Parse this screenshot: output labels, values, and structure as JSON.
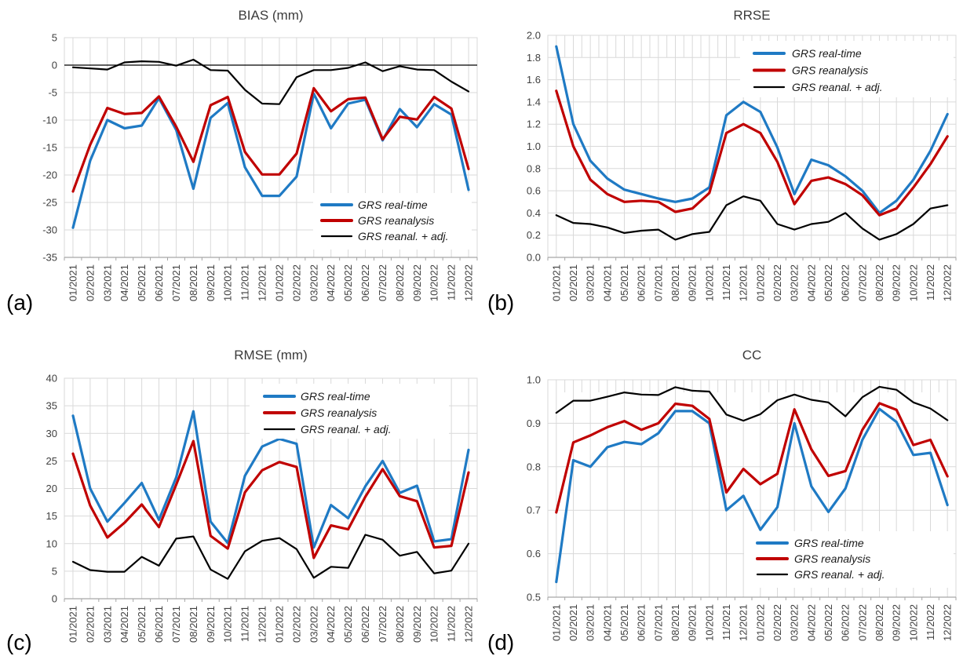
{
  "figure": {
    "background": "#FFFFFF",
    "accent_colors": {
      "real_time_blue": "#1F7AC4",
      "reanalysis_red": "#C00000",
      "adjusted_black": "#000000"
    },
    "legend_labels": [
      "GRS real-time",
      "GRS reanalysis",
      "GRS reanal. + adj."
    ]
  },
  "chart_data": [
    {
      "id": "bias",
      "letter": "(a)",
      "type": "line",
      "title": "BIAS (mm)",
      "xlabel": "",
      "ylabel": "",
      "ylim": [
        -35,
        5
      ],
      "ytick_step": 5,
      "ytick_decimals": 0,
      "grid": "on",
      "legend_position": "bottom-right",
      "categories": [
        "01/2021",
        "02/2021",
        "03/2021",
        "04/2021",
        "05/2021",
        "06/2021",
        "07/2021",
        "08/2021",
        "09/2021",
        "10/2021",
        "11/2021",
        "12/2021",
        "01/2022",
        "02/2022",
        "03/2022",
        "04/2022",
        "05/2022",
        "06/2022",
        "07/2022",
        "08/2022",
        "09/2022",
        "10/2022",
        "11/2022",
        "12/2022"
      ],
      "series": [
        {
          "name": "GRS real-time",
          "color": "#1F7AC4",
          "values": [
            -29.6,
            -17.4,
            -10.0,
            -11.5,
            -11.0,
            -6.0,
            -11.8,
            -22.5,
            -9.6,
            -6.9,
            -18.6,
            -23.8,
            -23.8,
            -20.3,
            -5.2,
            -11.5,
            -7.0,
            -6.3,
            -13.7,
            -8.0,
            -11.3,
            -7.1,
            -9.0,
            -22.7
          ]
        },
        {
          "name": "GRS reanalysis",
          "color": "#C00000",
          "values": [
            -23.0,
            -14.5,
            -7.8,
            -8.9,
            -8.7,
            -5.7,
            -11.2,
            -17.6,
            -7.3,
            -5.8,
            -15.8,
            -19.9,
            -19.9,
            -16.1,
            -4.2,
            -8.4,
            -6.2,
            -5.9,
            -13.5,
            -9.4,
            -9.9,
            -5.8,
            -7.9,
            -18.9
          ]
        },
        {
          "name": "GRS reanal. + adj.",
          "color": "#000000",
          "values": [
            -0.4,
            -0.6,
            -0.8,
            0.5,
            0.7,
            0.6,
            -0.1,
            1.0,
            -0.9,
            -1.0,
            -4.5,
            -7.0,
            -7.1,
            -2.2,
            -0.9,
            -0.9,
            -0.5,
            0.5,
            -1.1,
            -0.2,
            -0.8,
            -0.9,
            -3.0,
            -4.8
          ]
        }
      ]
    },
    {
      "id": "rrse",
      "letter": "(b)",
      "type": "line",
      "title": "RRSE",
      "xlabel": "",
      "ylabel": "",
      "ylim": [
        0.0,
        2.0
      ],
      "ytick_step": 0.2,
      "ytick_decimals": 1,
      "grid": "on",
      "legend_position": "top-right",
      "categories": [
        "01/2021",
        "02/2021",
        "03/2021",
        "04/2021",
        "05/2021",
        "06/2021",
        "07/2021",
        "08/2021",
        "09/2021",
        "10/2021",
        "11/2021",
        "12/2021",
        "01/2022",
        "02/2022",
        "03/2022",
        "04/2022",
        "05/2022",
        "06/2022",
        "07/2022",
        "08/2022",
        "09/2022",
        "10/2022",
        "11/2022",
        "12/2022"
      ],
      "series": [
        {
          "name": "GRS real-time",
          "color": "#1F7AC4",
          "values": [
            1.9,
            1.2,
            0.87,
            0.71,
            0.61,
            0.57,
            0.53,
            0.5,
            0.53,
            0.63,
            1.28,
            1.4,
            1.31,
            0.99,
            0.57,
            0.88,
            0.83,
            0.73,
            0.6,
            0.4,
            0.51,
            0.7,
            0.96,
            1.29
          ]
        },
        {
          "name": "GRS reanalysis",
          "color": "#C00000",
          "values": [
            1.5,
            1.0,
            0.7,
            0.57,
            0.5,
            0.51,
            0.5,
            0.41,
            0.44,
            0.58,
            1.12,
            1.2,
            1.12,
            0.86,
            0.48,
            0.69,
            0.72,
            0.66,
            0.56,
            0.38,
            0.44,
            0.63,
            0.84,
            1.09
          ]
        },
        {
          "name": "GRS reanal. + adj.",
          "color": "#000000",
          "values": [
            0.38,
            0.31,
            0.3,
            0.27,
            0.22,
            0.24,
            0.25,
            0.16,
            0.21,
            0.23,
            0.47,
            0.55,
            0.51,
            0.3,
            0.25,
            0.3,
            0.32,
            0.4,
            0.26,
            0.16,
            0.21,
            0.3,
            0.44,
            0.47
          ]
        }
      ]
    },
    {
      "id": "rmse",
      "letter": "(c)",
      "type": "line",
      "title": "RMSE (mm)",
      "xlabel": "",
      "ylabel": "",
      "ylim": [
        0,
        40
      ],
      "ytick_step": 5,
      "ytick_decimals": 0,
      "grid": "on",
      "legend_position": "top-right",
      "categories": [
        "01/2021",
        "02/2021",
        "03/2021",
        "04/2021",
        "05/2021",
        "06/2021",
        "07/2021",
        "08/2021",
        "09/2021",
        "10/2021",
        "11/2021",
        "12/2021",
        "01/2022",
        "02/2022",
        "03/2022",
        "04/2022",
        "05/2022",
        "06/2022",
        "07/2022",
        "08/2022",
        "09/2022",
        "10/2022",
        "11/2022",
        "12/2022"
      ],
      "series": [
        {
          "name": "GRS real-time",
          "color": "#1F7AC4",
          "values": [
            33.2,
            20.0,
            14.0,
            17.4,
            21.0,
            14.3,
            22.0,
            34.0,
            14.0,
            10.1,
            22.3,
            27.6,
            29.0,
            28.1,
            9.3,
            17.0,
            14.6,
            20.4,
            25.0,
            19.2,
            20.5,
            10.4,
            10.8,
            27.0
          ]
        },
        {
          "name": "GRS reanalysis",
          "color": "#C00000",
          "values": [
            26.3,
            16.9,
            11.1,
            13.8,
            17.1,
            13.0,
            20.7,
            28.6,
            11.4,
            9.1,
            19.3,
            23.3,
            24.8,
            23.9,
            7.4,
            13.3,
            12.6,
            18.5,
            23.5,
            18.6,
            17.7,
            9.3,
            9.6,
            22.9
          ]
        },
        {
          "name": "GRS reanal. + adj.",
          "color": "#000000",
          "values": [
            6.7,
            5.2,
            4.9,
            4.9,
            7.6,
            6.0,
            10.9,
            11.3,
            5.3,
            3.6,
            8.6,
            10.5,
            11.0,
            9.0,
            3.8,
            5.8,
            5.6,
            11.6,
            10.7,
            7.8,
            8.5,
            4.6,
            5.1,
            10.0
          ]
        }
      ]
    },
    {
      "id": "cc",
      "letter": "(d)",
      "type": "line",
      "title": "CC",
      "xlabel": "",
      "ylabel": "",
      "ylim": [
        0.5,
        1.0
      ],
      "ytick_step": 0.1,
      "ytick_decimals": 1,
      "grid": "on",
      "legend_position": "bottom-right",
      "categories": [
        "01/2021",
        "02/2021",
        "03/2021",
        "04/2021",
        "05/2021",
        "06/2021",
        "07/2021",
        "08/2021",
        "09/2021",
        "10/2021",
        "11/2021",
        "12/2021",
        "01/2022",
        "02/2022",
        "03/2022",
        "04/2022",
        "05/2022",
        "06/2022",
        "07/2022",
        "08/2022",
        "09/2022",
        "10/2022",
        "11/2022",
        "12/2022"
      ],
      "series": [
        {
          "name": "GRS real-time",
          "color": "#1F7AC4",
          "values": [
            0.535,
            0.815,
            0.8,
            0.845,
            0.857,
            0.852,
            0.877,
            0.928,
            0.928,
            0.9,
            0.7,
            0.733,
            0.655,
            0.707,
            0.9,
            0.755,
            0.696,
            0.75,
            0.862,
            0.933,
            0.903,
            0.827,
            0.832,
            0.712
          ]
        },
        {
          "name": "GRS reanalysis",
          "color": "#C00000",
          "values": [
            0.695,
            0.856,
            0.872,
            0.891,
            0.905,
            0.885,
            0.9,
            0.945,
            0.94,
            0.91,
            0.741,
            0.795,
            0.76,
            0.784,
            0.932,
            0.84,
            0.779,
            0.79,
            0.885,
            0.946,
            0.931,
            0.85,
            0.862,
            0.778
          ]
        },
        {
          "name": "GRS reanal. + adj.",
          "color": "#000000",
          "values": [
            0.924,
            0.952,
            0.952,
            0.961,
            0.971,
            0.966,
            0.965,
            0.983,
            0.975,
            0.973,
            0.92,
            0.906,
            0.921,
            0.953,
            0.966,
            0.954,
            0.948,
            0.916,
            0.96,
            0.984,
            0.977,
            0.948,
            0.934,
            0.907
          ]
        }
      ]
    }
  ]
}
